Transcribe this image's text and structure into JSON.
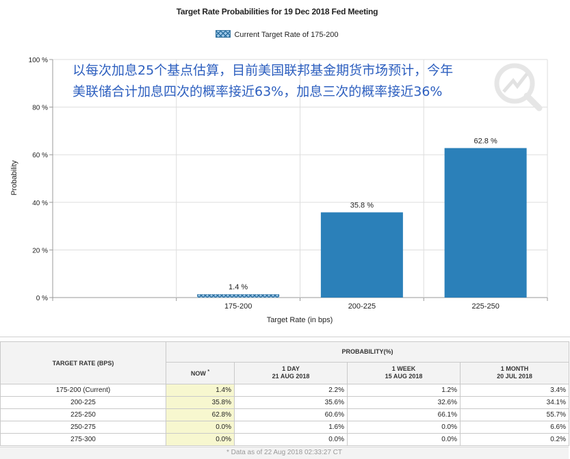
{
  "chart_data": {
    "type": "bar",
    "title": "Target Rate Probabilities for 19 Dec 2018 Fed Meeting",
    "legend": "Current Target Rate of 175-200",
    "xlabel": "Target Rate (in bps)",
    "ylabel": "Probability",
    "categories": [
      "175-200",
      "200-225",
      "225-250"
    ],
    "values": [
      1.4,
      35.8,
      62.8
    ],
    "value_labels": [
      "1.4 %",
      "35.8 %",
      "62.8 %"
    ],
    "ylim": [
      0,
      100
    ],
    "yticks": [
      "0 %",
      "20 %",
      "40 %",
      "60 %",
      "80 %",
      "100 %"
    ],
    "ytick_values": [
      0,
      20,
      40,
      60,
      80,
      100
    ],
    "grid": true,
    "legend_position": "top-center",
    "colors": {
      "bar": "#2b80b9",
      "current_hatch": "#2b6f9f",
      "current_fill": "#9cc6e6",
      "grid": "#dddddd",
      "axis": "#999999"
    }
  },
  "annotation": {
    "line1": "以每次加息25个基点估算，目前美国联邦基金期货市场预计，今年",
    "line2": "美联储合计加息四次的概率接近63%，加息三次的概率接近36%"
  },
  "table": {
    "header_rate": "TARGET RATE (BPS)",
    "header_probability": "PROBABILITY(%)",
    "columns": [
      {
        "line1": "NOW",
        "sup": "*",
        "line2": ""
      },
      {
        "line1": "1 DAY",
        "line2": "21 AUG 2018"
      },
      {
        "line1": "1 WEEK",
        "line2": "15 AUG 2018"
      },
      {
        "line1": "1 MONTH",
        "line2": "20 JUL 2018"
      }
    ],
    "rows": [
      {
        "rate": "175-200 (Current)",
        "now": "1.4%",
        "day": "2.2%",
        "week": "1.2%",
        "month": "3.4%"
      },
      {
        "rate": "200-225",
        "now": "35.8%",
        "day": "35.6%",
        "week": "32.6%",
        "month": "34.1%"
      },
      {
        "rate": "225-250",
        "now": "62.8%",
        "day": "60.6%",
        "week": "66.1%",
        "month": "55.7%"
      },
      {
        "rate": "250-275",
        "now": "0.0%",
        "day": "1.6%",
        "week": "0.0%",
        "month": "6.6%"
      },
      {
        "rate": "275-300",
        "now": "0.0%",
        "day": "0.0%",
        "week": "0.0%",
        "month": "0.2%"
      }
    ],
    "footnote": "* Data as of 22 Aug 2018 02:33:27 CT",
    "now_highlight_color": "#f7f7cf"
  }
}
